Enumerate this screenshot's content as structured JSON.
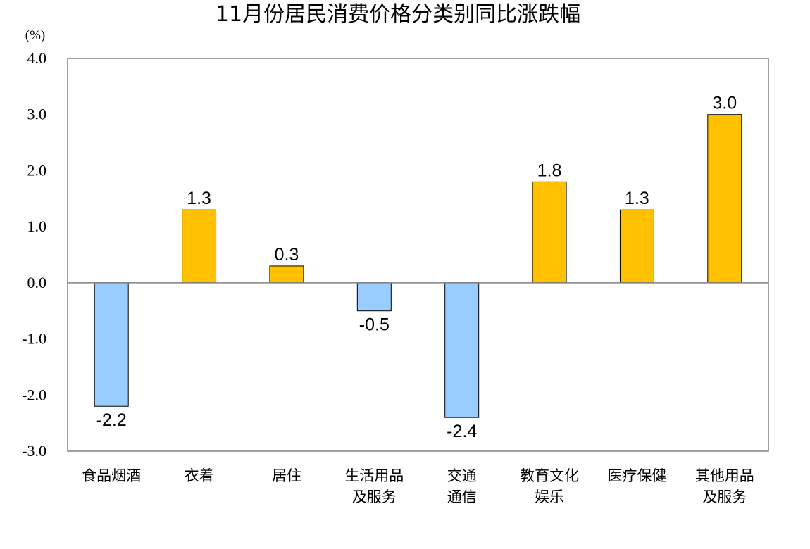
{
  "chart_data": {
    "type": "bar",
    "title": "11月份居民消费价格分类别同比涨跌幅",
    "unit_label": "(%)",
    "xlabel": "",
    "ylabel": "",
    "ylim": [
      -3.0,
      4.0
    ],
    "yticks": [
      "4.0",
      "3.0",
      "2.0",
      "1.0",
      "0.0",
      "-1.0",
      "-2.0",
      "-3.0"
    ],
    "ytick_values": [
      4,
      3,
      2,
      1,
      0,
      -1,
      -2,
      -3
    ],
    "categories": [
      [
        "食品烟酒"
      ],
      [
        "衣着"
      ],
      [
        "居住"
      ],
      [
        "生活用品",
        "及服务"
      ],
      [
        "交通",
        "通信"
      ],
      [
        "教育文化",
        "娱乐"
      ],
      [
        "医疗保健"
      ],
      [
        "其他用品",
        "及服务"
      ]
    ],
    "values": [
      -2.2,
      1.3,
      0.3,
      -0.5,
      -2.4,
      1.8,
      1.3,
      3.0
    ],
    "value_labels": [
      "-2.2",
      "1.3",
      "0.3",
      "-0.5",
      "-2.4",
      "1.8",
      "1.3",
      "3.0"
    ],
    "grid": false,
    "legend": "none",
    "colors": {
      "positive": "#FFC000",
      "negative": "#99CCFF",
      "bar_edge": "#000000",
      "frame": "#808080",
      "zero_line": "#808080"
    }
  }
}
